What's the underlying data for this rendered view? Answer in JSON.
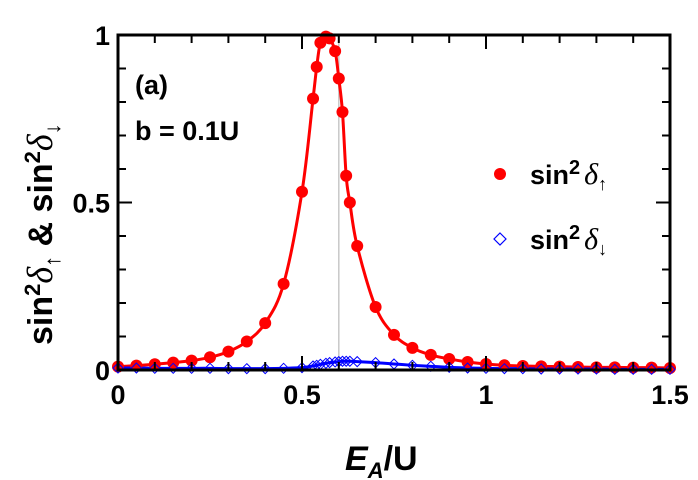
{
  "chart_data": {
    "type": "scatter",
    "panel_label": "(a)",
    "annotation": "b = 0.1U",
    "xlabel": {
      "main": "E",
      "sub": "A",
      "rest": "/U"
    },
    "ylabel": {
      "part1": "sin",
      "sup": "2",
      "greek": "δ",
      "arrow_up": "↑",
      "amp": " & ",
      "part2": "sin",
      "arrow_down": "↓"
    },
    "xlim": [
      0,
      1.5
    ],
    "ylim": [
      0,
      1
    ],
    "xticks": [
      {
        "v": 0,
        "label": "0"
      },
      {
        "v": 0.5,
        "label": "0.5"
      },
      {
        "v": 1,
        "label": "1"
      },
      {
        "v": 1.5,
        "label": "1.5"
      }
    ],
    "yticks": [
      {
        "v": 0,
        "label": "0"
      },
      {
        "v": 0.5,
        "label": "0.5"
      },
      {
        "v": 1,
        "label": "1"
      }
    ],
    "reference_line_x": 0.6,
    "legend_placement": "right",
    "colors": {
      "up": "#ff0000",
      "down": "#0000ff",
      "ref": "#c8c8c8"
    },
    "series": [
      {
        "name": "sin² δ↑",
        "legend": {
          "base": "sin",
          "sup": "2",
          "greek": "δ",
          "arrow": "↑"
        },
        "marker": "filled-circle",
        "x": [
          0,
          0.05,
          0.1,
          0.15,
          0.2,
          0.25,
          0.3,
          0.35,
          0.4,
          0.45,
          0.5,
          0.53,
          0.54,
          0.55,
          0.565,
          0.575,
          0.59,
          0.6,
          0.61,
          0.62,
          0.63,
          0.65,
          0.7,
          0.75,
          0.8,
          0.85,
          0.9,
          0.95,
          1.0,
          1.05,
          1.1,
          1.15,
          1.2,
          1.25,
          1.3,
          1.35,
          1.4,
          1.45,
          1.5
        ],
        "y": [
          0.01,
          0.013,
          0.017,
          0.022,
          0.028,
          0.038,
          0.055,
          0.085,
          0.14,
          0.257,
          0.532,
          0.81,
          0.905,
          0.977,
          0.995,
          0.99,
          0.952,
          0.87,
          0.77,
          0.58,
          0.5,
          0.37,
          0.188,
          0.105,
          0.066,
          0.045,
          0.033,
          0.024,
          0.018,
          0.014,
          0.012,
          0.011,
          0.01,
          0.009,
          0.008,
          0.008,
          0.007,
          0.007,
          0.006
        ]
      },
      {
        "name": "sin² δ↓",
        "legend": {
          "base": "sin",
          "sup": "2",
          "greek": "δ",
          "arrow": "↓"
        },
        "marker": "open-diamond",
        "x": [
          0,
          0.05,
          0.1,
          0.15,
          0.2,
          0.25,
          0.3,
          0.35,
          0.4,
          0.45,
          0.5,
          0.53,
          0.54,
          0.55,
          0.565,
          0.575,
          0.59,
          0.6,
          0.61,
          0.62,
          0.63,
          0.65,
          0.7,
          0.75,
          0.8,
          0.85,
          0.9,
          0.95,
          1.0,
          1.05,
          1.1,
          1.15,
          1.2,
          1.25,
          1.3,
          1.35,
          1.4,
          1.45,
          1.5
        ],
        "y": [
          0.006,
          0.006,
          0.005,
          0.005,
          0.005,
          0.005,
          0.004,
          0.004,
          0.004,
          0.005,
          0.007,
          0.012,
          0.014,
          0.017,
          0.02,
          0.022,
          0.024,
          0.025,
          0.026,
          0.026,
          0.026,
          0.025,
          0.022,
          0.018,
          0.014,
          0.011,
          0.008,
          0.006,
          0.005,
          0.004,
          0.004,
          0.003,
          0.003,
          0.003,
          0.003,
          0.002,
          0.002,
          0.002,
          0.002
        ]
      }
    ]
  }
}
